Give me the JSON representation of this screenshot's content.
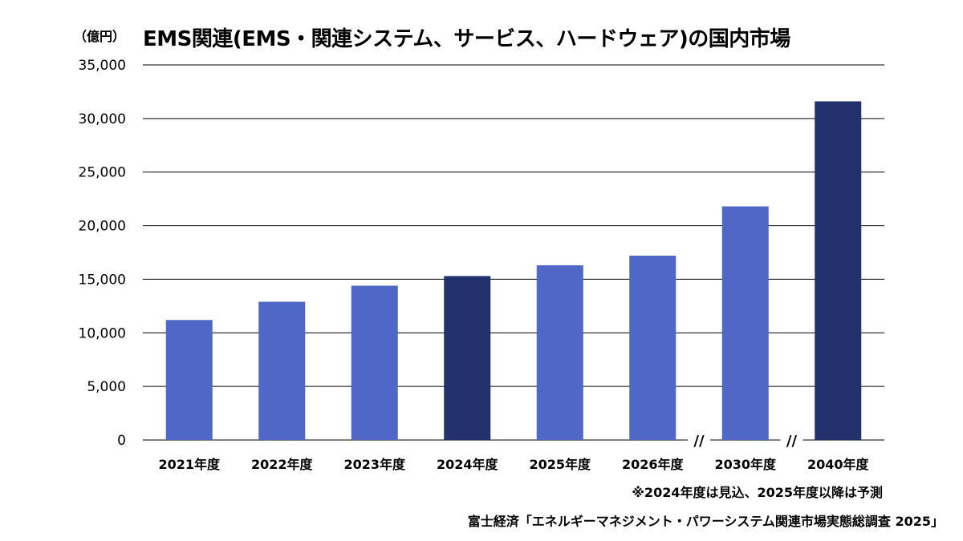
{
  "chart_data": {
    "type": "bar",
    "title": "EMS関連(EMS・関連システム、サービス、ハードウェア)の国内市場",
    "unit": "（億円）",
    "categories": [
      "2021年度",
      "2022年度",
      "2023年度",
      "2024年度",
      "2025年度",
      "2026年度",
      "2030年度",
      "2040年度"
    ],
    "values": [
      11200,
      12900,
      14400,
      15300,
      16300,
      17200,
      21800,
      31600
    ],
    "bar_kinds": [
      "actual",
      "actual",
      "actual",
      "estimate",
      "forecast",
      "forecast",
      "forecast",
      "forecast"
    ],
    "yticks": [
      "0",
      "5,000",
      "10,000",
      "15,000",
      "20,000",
      "25,000",
      "30,000",
      "35,000"
    ],
    "ytick_values": [
      0,
      5000,
      10000,
      15000,
      20000,
      25000,
      30000,
      35000
    ],
    "ylim": [
      0,
      35000
    ],
    "grid": true,
    "axis_break_marks": [
      "//",
      "//"
    ],
    "note": "※2024年度は見込、2025年度以降は予測",
    "source": "富士経済「エネルギーマネジメント・パワーシステム関連市場実態総調査 2025」"
  },
  "colors": {
    "bar_default": "#4f67c6",
    "bar_highlight": "#22306b",
    "grid": "#000000",
    "background": "#ffffff"
  },
  "highlight_categories": [
    "2024年度",
    "2040年度"
  ]
}
